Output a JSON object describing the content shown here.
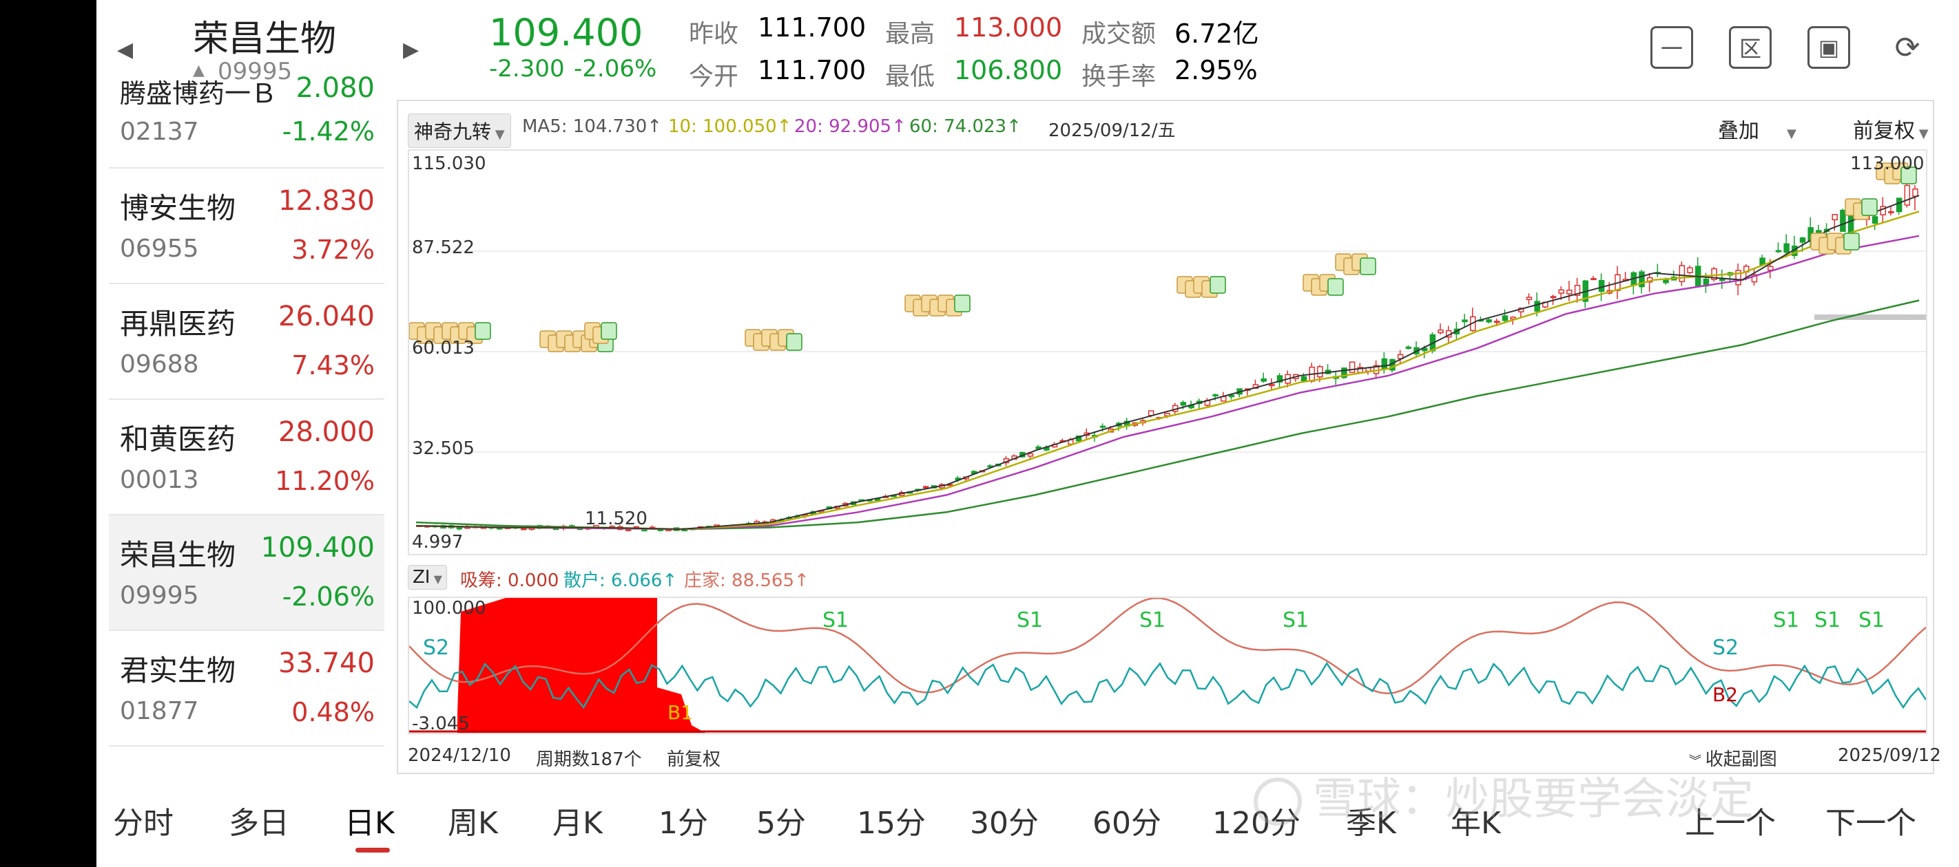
{
  "header": {
    "stock_name": "荣昌生物",
    "stock_code": "09995",
    "price": "109.400",
    "change": "-2.300",
    "change_pct": "-2.06%",
    "quotes": [
      {
        "label": "昨收",
        "value": "111.700",
        "color": "#222222"
      },
      {
        "label": "最高",
        "value": "113.000",
        "color": "#d0312d"
      },
      {
        "label": "成交额",
        "value": "6.72亿",
        "color": "#222222"
      },
      {
        "label": "今开",
        "value": "111.700",
        "color": "#222222"
      },
      {
        "label": "最低",
        "value": "106.800",
        "color": "#17a130"
      },
      {
        "label": "换手率",
        "value": "2.95%",
        "color": "#222222"
      }
    ],
    "buttons": [
      "minus-box-icon",
      "region-box-icon",
      "frame-box-icon",
      "rotate-screen-icon"
    ],
    "button_glyphs": [
      "一",
      "区",
      "▣",
      "⟳"
    ]
  },
  "sidebar": {
    "items": [
      {
        "name": "腾盛博药一Ｂ",
        "price": "2.080",
        "code": "02137",
        "pct": "-1.42%",
        "dir": "down"
      },
      {
        "name": "博安生物",
        "price": "12.830",
        "code": "06955",
        "pct": "3.72%",
        "dir": "up"
      },
      {
        "name": "再鼎医药",
        "price": "26.040",
        "code": "09688",
        "pct": "7.43%",
        "dir": "up"
      },
      {
        "name": "和黄医药",
        "price": "28.000",
        "code": "00013",
        "pct": "11.20%",
        "dir": "up"
      },
      {
        "name": "荣昌生物",
        "price": "109.400",
        "code": "09995",
        "pct": "-2.06%",
        "dir": "down"
      },
      {
        "name": "君实生物",
        "price": "33.740",
        "code": "01877",
        "pct": "0.48%",
        "dir": "up"
      }
    ]
  },
  "chart": {
    "indicator_btn": "神奇九转",
    "ma_labels": [
      {
        "text": "MA5: 104.730↑",
        "color": "#555555"
      },
      {
        "text": "10: 100.050↑",
        "color": "#b8b000"
      },
      {
        "text": "20: 92.905↑",
        "color": "#b03ab8"
      },
      {
        "text": "60: 74.023↑",
        "color": "#2e8b2e"
      }
    ],
    "date_label": "2025/09/12/五",
    "overlay_btn": "叠加",
    "adjust_btn": "前复权",
    "y_ticks": [
      "115.030",
      "87.522",
      "60.013",
      "32.505",
      "4.997"
    ],
    "hi_label": "113.000",
    "lo_label": "11.520",
    "sub_indicator_btn": "ZI",
    "sub_labels": [
      {
        "text": "吸筹: 0.000",
        "color": "#c0392b"
      },
      {
        "text": "散户: 6.066↑",
        "color": "#1aa5a5"
      },
      {
        "text": "庄家: 88.565↑",
        "color": "#d97060"
      }
    ],
    "sub_y_top": "100.000",
    "sub_y_bottom": "-3.045",
    "signals": [
      "S2",
      "S1",
      "S1",
      "S1",
      "S1",
      "S2",
      "S1",
      "S1",
      "S1",
      "B1",
      "B2"
    ],
    "start_date": "2024/12/10",
    "period_count": "周期数187个",
    "footer_adjust": "前复权",
    "collapse_label": "收起副图",
    "end_date": "2025/09/12"
  },
  "chart_data": {
    "type": "line",
    "title": "",
    "xlabel": "",
    "ylabel": "",
    "x_range": [
      "2024/12/10",
      "2025/09/12"
    ],
    "ylim": [
      4.997,
      115.03
    ],
    "series": [
      {
        "name": "MA5",
        "values": [
          8,
          7.5,
          7.5,
          7,
          9,
          15,
          20,
          30,
          38,
          45,
          52,
          55,
          68,
          75,
          82,
          80,
          95,
          104.73
        ]
      },
      {
        "name": "10",
        "values": [
          8,
          7.5,
          7.5,
          7,
          8.5,
          14,
          19,
          28,
          37,
          43,
          50,
          54,
          65,
          73,
          80,
          82,
          92,
          100.05
        ]
      },
      {
        "name": "20",
        "values": [
          8,
          7.5,
          7.3,
          7,
          8,
          12,
          17,
          25,
          34,
          40,
          47,
          52,
          60,
          70,
          76,
          80,
          88,
          92.905
        ]
      },
      {
        "name": "60",
        "values": [
          9,
          8,
          7.5,
          7,
          7.5,
          9,
          12,
          17,
          23,
          29,
          35,
          40,
          46,
          51,
          56,
          61,
          68,
          74.023
        ]
      }
    ]
  },
  "tabs": [
    "分时",
    "多日",
    "日K",
    "周K",
    "月K",
    "1分",
    "5分",
    "15分",
    "30分",
    "60分",
    "120分",
    "季K",
    "年K",
    "上一个",
    "下一个"
  ],
  "active_tab": "日K",
  "watermark": "雪球：炒股要学会淡定"
}
